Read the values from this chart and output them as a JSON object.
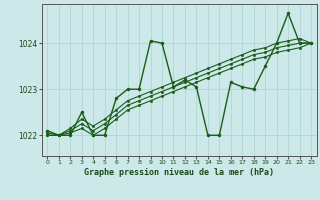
{
  "title": "Graphe pression niveau de la mer (hPa)",
  "bg_color": "#cce8e8",
  "grid_color": "#b0d4d4",
  "line_color": "#1a5c1a",
  "xlim": [
    -0.5,
    23.5
  ],
  "ylim": [
    1021.55,
    1024.85
  ],
  "yticks": [
    1022,
    1023,
    1024
  ],
  "xticks": [
    0,
    1,
    2,
    3,
    4,
    5,
    6,
    7,
    8,
    9,
    10,
    11,
    12,
    13,
    14,
    15,
    16,
    17,
    18,
    19,
    20,
    21,
    22,
    23
  ],
  "series": [
    {
      "x": [
        0,
        1,
        2,
        3,
        4,
        5,
        6,
        7,
        8,
        9,
        10,
        11,
        12,
        13,
        14,
        15,
        16,
        17,
        18,
        19,
        20,
        21,
        22,
        23
      ],
      "y": [
        1022.1,
        1022.0,
        1022.0,
        1022.5,
        1022.0,
        1022.0,
        1022.8,
        1023.0,
        1023.0,
        1024.05,
        1024.0,
        1023.05,
        1023.2,
        1023.05,
        1022.0,
        1022.0,
        1023.15,
        1023.05,
        1023.0,
        1023.5,
        1024.0,
        1024.65,
        1024.0,
        1024.0
      ],
      "lw": 1.0,
      "ms": 2.2,
      "style": "-"
    },
    {
      "x": [
        0,
        1,
        2,
        3,
        4,
        5,
        6,
        7,
        8,
        9,
        10,
        11,
        12,
        13,
        14,
        15,
        16,
        17,
        18,
        19,
        20,
        21,
        22,
        23
      ],
      "y": [
        1022.05,
        1022.0,
        1022.15,
        1022.35,
        1022.2,
        1022.35,
        1022.55,
        1022.75,
        1022.85,
        1022.95,
        1023.05,
        1023.15,
        1023.25,
        1023.35,
        1023.45,
        1023.55,
        1023.65,
        1023.75,
        1023.85,
        1023.9,
        1024.0,
        1024.05,
        1024.1,
        1024.0
      ],
      "lw": 0.8,
      "ms": 1.8,
      "style": "-"
    },
    {
      "x": [
        0,
        1,
        2,
        3,
        4,
        5,
        6,
        7,
        8,
        9,
        10,
        11,
        12,
        13,
        14,
        15,
        16,
        17,
        18,
        19,
        20,
        21,
        22,
        23
      ],
      "y": [
        1022.0,
        1022.0,
        1022.1,
        1022.25,
        1022.1,
        1022.25,
        1022.45,
        1022.65,
        1022.75,
        1022.85,
        1022.95,
        1023.05,
        1023.15,
        1023.25,
        1023.35,
        1023.45,
        1023.55,
        1023.65,
        1023.75,
        1023.8,
        1023.9,
        1023.95,
        1024.0,
        1024.0
      ],
      "lw": 0.8,
      "ms": 1.8,
      "style": "-"
    },
    {
      "x": [
        0,
        1,
        2,
        3,
        4,
        5,
        6,
        7,
        8,
        9,
        10,
        11,
        12,
        13,
        14,
        15,
        16,
        17,
        18,
        19,
        20,
        21,
        22,
        23
      ],
      "y": [
        1022.0,
        1022.0,
        1022.05,
        1022.15,
        1022.0,
        1022.15,
        1022.35,
        1022.55,
        1022.65,
        1022.75,
        1022.85,
        1022.95,
        1023.05,
        1023.15,
        1023.25,
        1023.35,
        1023.45,
        1023.55,
        1023.65,
        1023.7,
        1023.8,
        1023.85,
        1023.9,
        1024.0
      ],
      "lw": 0.8,
      "ms": 1.8,
      "style": "-"
    }
  ]
}
